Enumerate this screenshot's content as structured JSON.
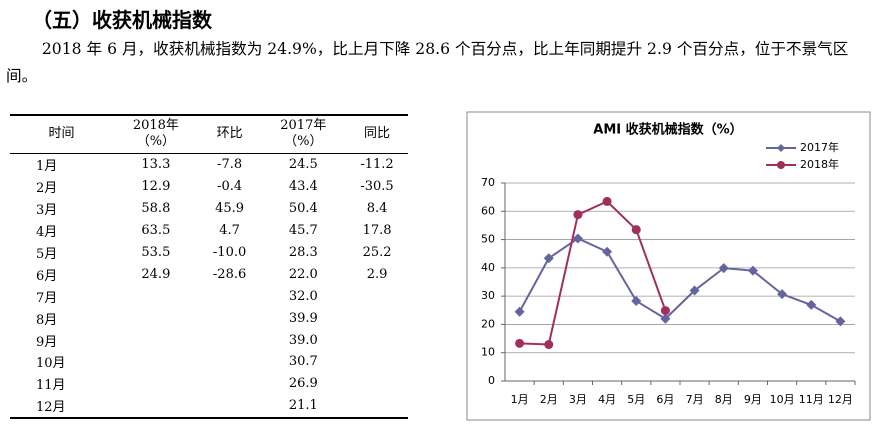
{
  "heading": "（五）收获机械指数",
  "paragraph": "2018 年 6 月，收获机械指数为 24.9%，比上月下降 28.6 个百分点，比上年同期提升 2.9 个百分点，位于不景气区间。",
  "table": {
    "headers": {
      "month": [
        "时间"
      ],
      "y2018": [
        "2018年",
        "（%）"
      ],
      "mom": [
        "环比"
      ],
      "y2017": [
        "2017年",
        "（%）"
      ],
      "yoy": [
        "同比"
      ]
    },
    "rows": [
      {
        "month": "1月",
        "y2018": "13.3",
        "mom": "-7.8",
        "y2017": "24.5",
        "yoy": "-11.2"
      },
      {
        "month": "2月",
        "y2018": "12.9",
        "mom": "-0.4",
        "y2017": "43.4",
        "yoy": "-30.5"
      },
      {
        "month": "3月",
        "y2018": "58.8",
        "mom": "45.9",
        "y2017": "50.4",
        "yoy": "8.4"
      },
      {
        "month": "4月",
        "y2018": "63.5",
        "mom": "4.7",
        "y2017": "45.7",
        "yoy": "17.8"
      },
      {
        "month": "5月",
        "y2018": "53.5",
        "mom": "-10.0",
        "y2017": "28.3",
        "yoy": "25.2"
      },
      {
        "month": "6月",
        "y2018": "24.9",
        "mom": "-28.6",
        "y2017": "22.0",
        "yoy": "2.9"
      },
      {
        "month": "7月",
        "y2017": "32.0"
      },
      {
        "month": "8月",
        "y2017": "39.9"
      },
      {
        "month": "9月",
        "y2017": "39.0"
      },
      {
        "month": "10月",
        "y2017": "30.7"
      },
      {
        "month": "11月",
        "y2017": "26.9"
      },
      {
        "month": "12月",
        "y2017": "21.1"
      }
    ]
  },
  "chart_data": {
    "type": "line",
    "title": "AMI 收获机械指数（%）",
    "categories": [
      "1月",
      "2月",
      "3月",
      "4月",
      "5月",
      "6月",
      "7月",
      "8月",
      "9月",
      "10月",
      "11月",
      "12月"
    ],
    "series": [
      {
        "name": "2017年",
        "color": "#64649e",
        "marker": "diamond",
        "values": [
          24.5,
          43.4,
          50.4,
          45.7,
          28.3,
          22.0,
          32.0,
          39.9,
          39.0,
          30.7,
          26.9,
          21.1
        ]
      },
      {
        "name": "2018年",
        "color": "#a02f5c",
        "marker": "circle",
        "values": [
          13.3,
          12.9,
          58.8,
          63.5,
          53.5,
          24.9,
          null,
          null,
          null,
          null,
          null,
          null
        ]
      }
    ],
    "ylim": [
      0,
      70
    ],
    "yticks": [
      0,
      10,
      20,
      30,
      40,
      50,
      60,
      70
    ],
    "grid": true,
    "legend": "top-right"
  }
}
